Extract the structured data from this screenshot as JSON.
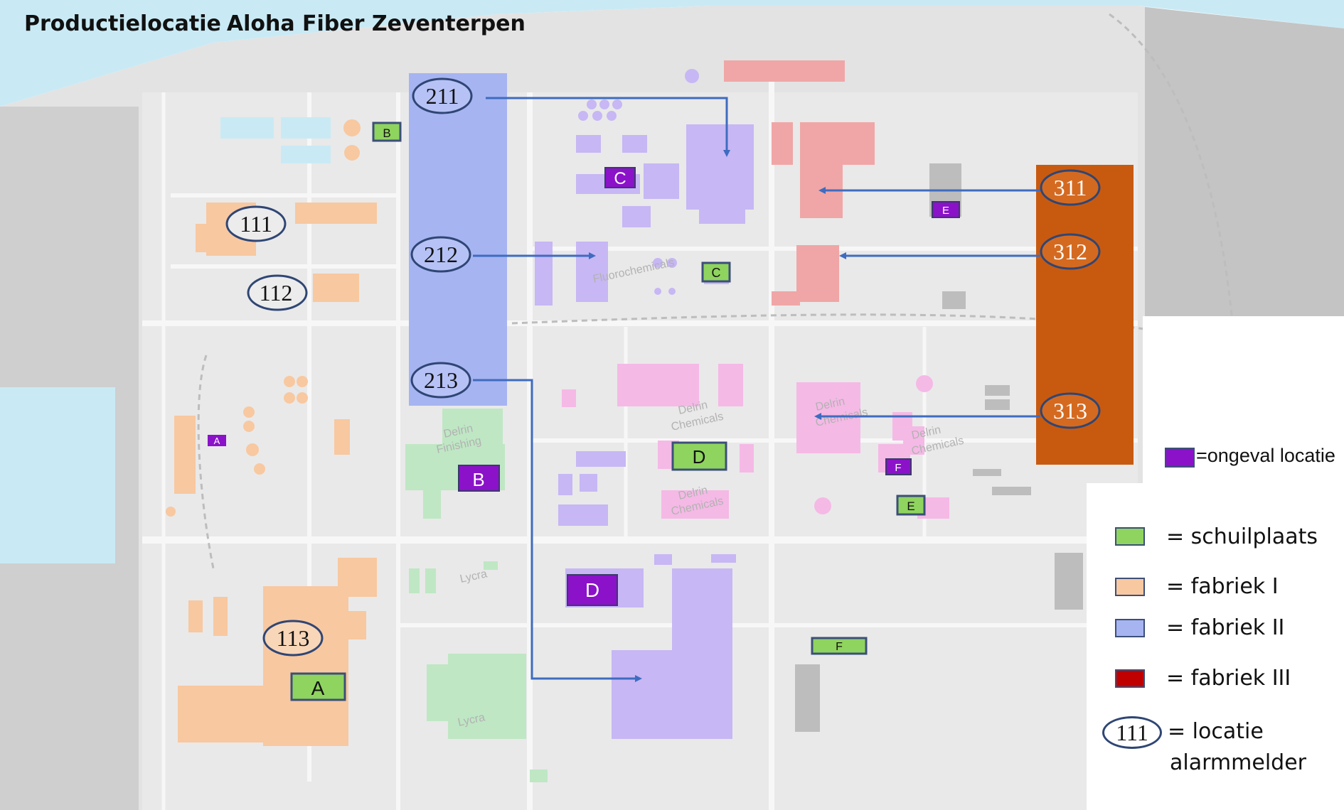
{
  "title": {
    "line1": "Productielocatie",
    "line2": "Aloha Fiber Zeventerpen"
  },
  "colors": {
    "fabriek_I": "#f8c8a0",
    "fabriek_II": "#a7b4f2",
    "fabriek_III": "#c85a10",
    "fabriek_III_legend": "#c00000",
    "schuilplaats": "#8fd45e",
    "ongeval": "#8b12c9",
    "alarm_oval": "#2f4674",
    "route": "#3e6cc0",
    "water": "#c9eaf5",
    "ground": "#e6e6e6"
  },
  "alarm_columns": [
    {
      "id": "fabriek-II-column",
      "color": "fabriek_II",
      "melders": [
        {
          "num": "211",
          "target": "c-area"
        },
        {
          "num": "212",
          "target": "fluoro"
        },
        {
          "num": "213",
          "target": "d-big"
        }
      ]
    },
    {
      "id": "fabriek-III-column",
      "color": "fabriek_III",
      "melders": [
        {
          "num": "311",
          "target": "red-top"
        },
        {
          "num": "312",
          "target": "red-mid"
        },
        {
          "num": "313",
          "target": "delrin-right"
        }
      ]
    }
  ],
  "site_melders": [
    {
      "num": "111"
    },
    {
      "num": "112"
    },
    {
      "num": "113"
    }
  ],
  "ongeval_markers": [
    {
      "label": "A"
    },
    {
      "label": "B"
    },
    {
      "label": "C"
    },
    {
      "label": "D"
    },
    {
      "label": "E"
    },
    {
      "label": "F"
    }
  ],
  "schuilplaats_markers": [
    {
      "label": "A"
    },
    {
      "label": "B"
    },
    {
      "label": "C"
    },
    {
      "label": "D"
    },
    {
      "label": "E"
    },
    {
      "label": "F"
    }
  ],
  "map_labels": {
    "delrin_finishing": "Delrin\nFinishing",
    "delrin_chemicals": "Delrin\nChemicals",
    "lycra": "Lycra",
    "fluorochemicals": "Fluorochemicals"
  },
  "legend": {
    "ongeval": "=ongeval locatie",
    "schuilplaats": "= schuilplaats",
    "fabriek_I": "= fabriek I",
    "fabriek_II": "= fabriek II",
    "fabriek_III": "= fabriek III",
    "melder_example": "111",
    "melder_line1": "= locatie",
    "melder_line2": "alarmmelder"
  }
}
